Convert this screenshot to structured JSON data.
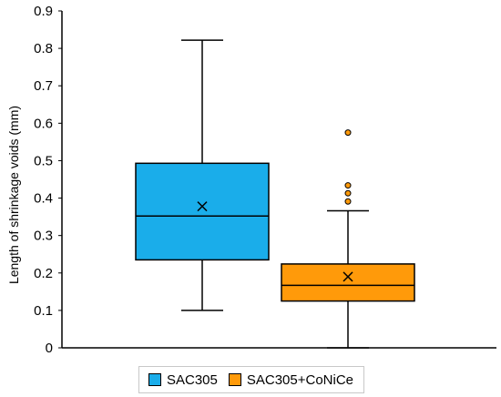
{
  "chart_data": {
    "type": "box",
    "title": "",
    "xlabel": "",
    "ylabel": "Length of shrinkage voids (mm)",
    "ylim": [
      0,
      0.9
    ],
    "yticks": [
      "0",
      "0.1",
      "0.2",
      "0.3",
      "0.4",
      "0.5",
      "0.6",
      "0.7",
      "0.8",
      "0.9"
    ],
    "grid": false,
    "legend_position": "bottom",
    "series": [
      {
        "name": "SAC305",
        "color": "#1AADEA",
        "min": 0.1,
        "q1": 0.235,
        "median": 0.352,
        "q3": 0.493,
        "max": 0.822,
        "mean": 0.378,
        "outliers": []
      },
      {
        "name": "SAC305+CoNiCe",
        "color": "#FF9A0A",
        "min": 0.0,
        "q1": 0.125,
        "median": 0.167,
        "q3": 0.224,
        "max": 0.366,
        "mean": 0.19,
        "outliers": [
          0.391,
          0.413,
          0.434,
          0.575
        ]
      }
    ]
  }
}
